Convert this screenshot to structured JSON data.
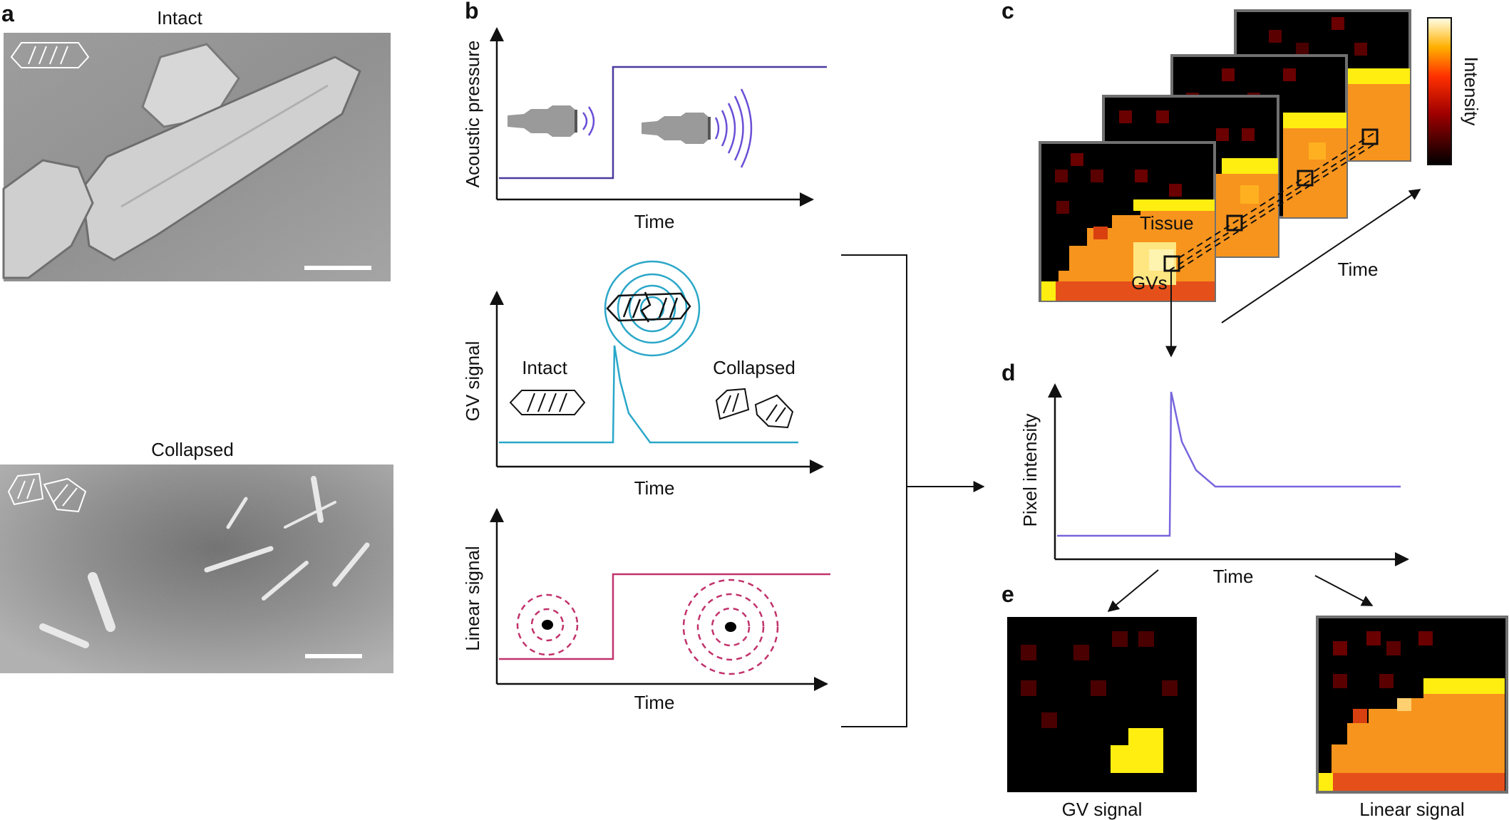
{
  "panels": {
    "a": {
      "label": "a",
      "intact_label": "Intact",
      "collapsed_label": "Collapsed"
    },
    "b": {
      "label": "b",
      "pressure_ylabel": "Acoustic pressure",
      "pressure_xlabel": "Time",
      "gv_ylabel": "GV signal",
      "gv_xlabel": "Time",
      "gv_intact_label": "Intact",
      "gv_collapsed_label": "Collapsed",
      "linear_ylabel": "Linear signal",
      "linear_xlabel": "Time"
    },
    "c": {
      "label": "c",
      "tissue_label": "Tissue",
      "gvs_label": "GVs",
      "time_label": "Time",
      "colorbar_label": "Intensity"
    },
    "d": {
      "label": "d",
      "ylabel": "Pixel intensity",
      "xlabel": "Time"
    },
    "e": {
      "label": "e",
      "gv_signal_label": "GV signal",
      "linear_signal_label": "Linear signal"
    }
  },
  "colors": {
    "pressure_line": "#4b3a9e",
    "gv_line": "#2aa7c9",
    "linear_line": "#c1326b",
    "pixel_line": "#7766dd",
    "tissue_orange": "#f7941d",
    "gv_yellow": "#ffee10",
    "background_black": "#000000"
  }
}
